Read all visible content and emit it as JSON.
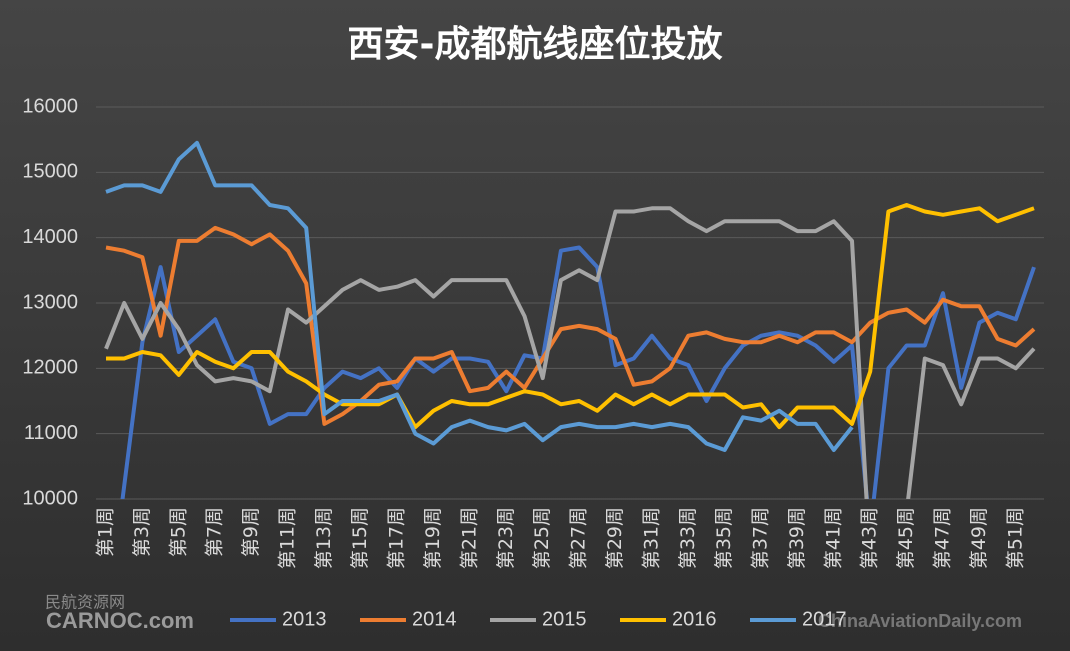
{
  "chart_data": {
    "type": "line",
    "title": "西安-成都航线座位投放",
    "categories": [
      "第1周",
      null,
      "第3周",
      null,
      "第5周",
      null,
      "第7周",
      null,
      "第9周",
      null,
      "第11周",
      null,
      "第13周",
      null,
      "第15周",
      null,
      "第17周",
      null,
      "第19周",
      null,
      "第21周",
      null,
      "第23周",
      null,
      "第25周",
      null,
      "第27周",
      null,
      "第29周",
      null,
      "第31周",
      null,
      "第33周",
      null,
      "第35周",
      null,
      "第37周",
      null,
      "第39周",
      null,
      "第41周",
      null,
      "第43周",
      null,
      "第45周",
      null,
      "第47周",
      null,
      "第49周",
      null,
      "第51周",
      null
    ],
    "series": [
      {
        "name": "2013",
        "color": "#4472c4",
        "values": [
          8000,
          10200,
          12400,
          13550,
          12250,
          12500,
          12750,
          12100,
          12000,
          11150,
          11300,
          11300,
          11700,
          11950,
          11850,
          12000,
          11700,
          12150,
          11950,
          12150,
          12150,
          12100,
          11650,
          12200,
          12150,
          13800,
          13850,
          13550,
          12050,
          12150,
          12500,
          12150,
          12050,
          11500,
          12000,
          12350,
          12500,
          12550,
          12500,
          12350,
          12100,
          12350,
          9500,
          12000,
          12350,
          12350,
          13150,
          11700,
          12700,
          12850,
          12750,
          13550
        ]
      },
      {
        "name": "2014",
        "color": "#ed7d31",
        "values": [
          13850,
          13800,
          13700,
          12500,
          13950,
          13950,
          14150,
          14050,
          13900,
          14050,
          13800,
          13300,
          11150,
          11300,
          11500,
          11750,
          11800,
          12150,
          12150,
          12250,
          11650,
          11700,
          11950,
          11700,
          12150,
          12600,
          12650,
          12600,
          12450,
          11750,
          11800,
          12000,
          12500,
          12550,
          12450,
          12400,
          12400,
          12500,
          12400,
          12550,
          12550,
          12400,
          12700,
          12850,
          12900,
          12700,
          13050,
          12950,
          12950,
          12450,
          12350,
          12600
        ]
      },
      {
        "name": "2015",
        "color": "#a5a5a5",
        "values": [
          12300,
          13000,
          12450,
          13000,
          12600,
          12050,
          11800,
          11850,
          11800,
          11650,
          12900,
          12700,
          12950,
          13200,
          13350,
          13200,
          13250,
          13350,
          13100,
          13350,
          13350,
          13350,
          13350,
          12800,
          11850,
          13350,
          13500,
          13350,
          14400,
          14400,
          14450,
          14450,
          14250,
          14100,
          14250,
          14250,
          14250,
          14250,
          14100,
          14100,
          14250,
          13950,
          9000,
          8500,
          9800,
          12150,
          12050,
          11450,
          12150,
          12150,
          12000,
          12300
        ]
      },
      {
        "name": "2016",
        "color": "#ffc000",
        "values": [
          12150,
          12150,
          12250,
          12200,
          11900,
          12250,
          12100,
          12000,
          12250,
          12250,
          11950,
          11800,
          11600,
          11450,
          11450,
          11450,
          11600,
          11100,
          11350,
          11500,
          11450,
          11450,
          11550,
          11650,
          11600,
          11450,
          11500,
          11350,
          11600,
          11450,
          11600,
          11450,
          11600,
          11600,
          11600,
          11400,
          11450,
          11100,
          11400,
          11400,
          11400,
          11150,
          11950,
          14400,
          14500,
          14400,
          14350,
          14400,
          14450,
          14250,
          14350,
          14450
        ]
      },
      {
        "name": "2017",
        "color": "#5b9bd5",
        "values": [
          14700,
          14800,
          14800,
          14700,
          15200,
          15450,
          14800,
          14800,
          14800,
          14500,
          14450,
          14150,
          11300,
          11500,
          11500,
          11500,
          11600,
          11000,
          10850,
          11100,
          11200,
          11100,
          11050,
          11150,
          10900,
          11100,
          11150,
          11100,
          11100,
          11150,
          11100,
          11150,
          11100,
          10850,
          10750,
          11250,
          11200,
          11350,
          11150,
          11150,
          10750,
          11100,
          null,
          null,
          null,
          null,
          null,
          null,
          null,
          null,
          null,
          null
        ]
      }
    ],
    "ylim": [
      10000,
      16000
    ],
    "yticks": [
      10000,
      11000,
      12000,
      13000,
      14000,
      15000,
      16000
    ],
    "grid": true
  },
  "watermarks": [
    "民航资源网",
    "CARNOC.com",
    "ChinaAviationDaily.com"
  ]
}
